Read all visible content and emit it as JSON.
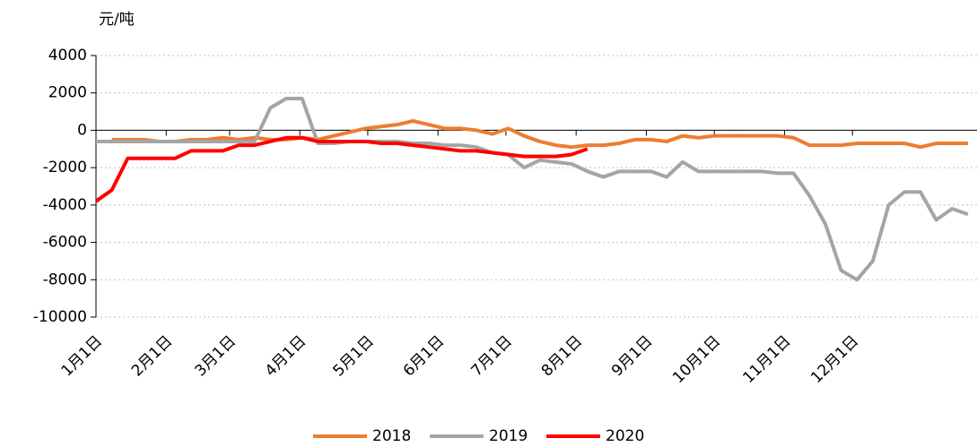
{
  "chart_data": {
    "type": "line",
    "y_label": "元/吨",
    "x": [
      1,
      8,
      15,
      22,
      29,
      36,
      43,
      50,
      57,
      64,
      71,
      78,
      85,
      92,
      99,
      106,
      113,
      120,
      127,
      134,
      141,
      148,
      155,
      162,
      169,
      176,
      183,
      190,
      197,
      204,
      211,
      218,
      225,
      232,
      239,
      246,
      253,
      260,
      267,
      274,
      281,
      288,
      295,
      302,
      309,
      316,
      323,
      330,
      337,
      344,
      351,
      358,
      365,
      372,
      379,
      386
    ],
    "xlim": [
      1,
      390
    ],
    "xticks": [
      {
        "value": 1,
        "label": "1月1日"
      },
      {
        "value": 32,
        "label": "2月1日"
      },
      {
        "value": 60,
        "label": "3月1日"
      },
      {
        "value": 91,
        "label": "4月1日"
      },
      {
        "value": 121,
        "label": "5月1日"
      },
      {
        "value": 152,
        "label": "6月1日"
      },
      {
        "value": 182,
        "label": "7月1日"
      },
      {
        "value": 213,
        "label": "8月1日"
      },
      {
        "value": 244,
        "label": "9月1日"
      },
      {
        "value": 274,
        "label": "10月1日"
      },
      {
        "value": 305,
        "label": "11月1日"
      },
      {
        "value": 335,
        "label": "12月1日"
      }
    ],
    "ylim": [
      -10000,
      4000
    ],
    "yticks": [
      4000,
      2000,
      0,
      -2000,
      -4000,
      -6000,
      -8000,
      -10000
    ],
    "grid": true,
    "legend": "bottom",
    "series": [
      {
        "name": "2018",
        "color": "#ed7d31",
        "values": [
          null,
          -500,
          -500,
          -500,
          -600,
          -600,
          -500,
          -500,
          -400,
          -500,
          -400,
          -500,
          -500,
          -400,
          -500,
          -300,
          -100,
          100,
          200,
          300,
          500,
          300,
          100,
          100,
          0,
          -200,
          100,
          -300,
          -600,
          -800,
          -900,
          -800,
          -800,
          -700,
          -500,
          -500,
          -600,
          -300,
          -400,
          -300,
          -300,
          -300,
          -300,
          -300,
          -400,
          -800,
          -800,
          -800,
          -700,
          -700,
          -700,
          -700,
          -900,
          -700,
          -700,
          -700
        ]
      },
      {
        "name": "2019",
        "color": "#a5a5a5",
        "values": [
          -600,
          -600,
          -600,
          -600,
          -600,
          -600,
          -600,
          -600,
          -600,
          -600,
          -600,
          1200,
          1700,
          1700,
          -700,
          -700,
          -600,
          -600,
          -600,
          -600,
          -700,
          -700,
          -800,
          -800,
          -900,
          -1200,
          -1300,
          -2000,
          -1600,
          -1700,
          -1800,
          -2200,
          -2500,
          -2200,
          -2200,
          -2200,
          -2500,
          -1700,
          -2200,
          -2200,
          -2200,
          -2200,
          -2200,
          -2300,
          -2300,
          -3500,
          -5000,
          -7500,
          -8000,
          -7000,
          -4000,
          -3300,
          -3300,
          -4800,
          -4200,
          -4500
        ]
      },
      {
        "name": "2020",
        "color": "#ff0000",
        "values": [
          -3800,
          -3200,
          -1500,
          -1500,
          -1500,
          -1500,
          -1100,
          -1100,
          -1100,
          -800,
          -800,
          -600,
          -400,
          -400,
          -600,
          -600,
          -600,
          -600,
          -700,
          -700,
          -800,
          -900,
          -1000,
          -1100,
          -1100,
          -1200,
          -1300,
          -1400,
          -1400,
          -1400,
          -1300,
          -1000,
          null,
          null,
          null,
          null,
          null,
          null,
          null,
          null,
          null,
          null,
          null,
          null,
          null,
          null,
          null,
          null,
          null,
          null,
          null,
          null,
          null,
          null,
          null,
          null
        ]
      }
    ]
  }
}
